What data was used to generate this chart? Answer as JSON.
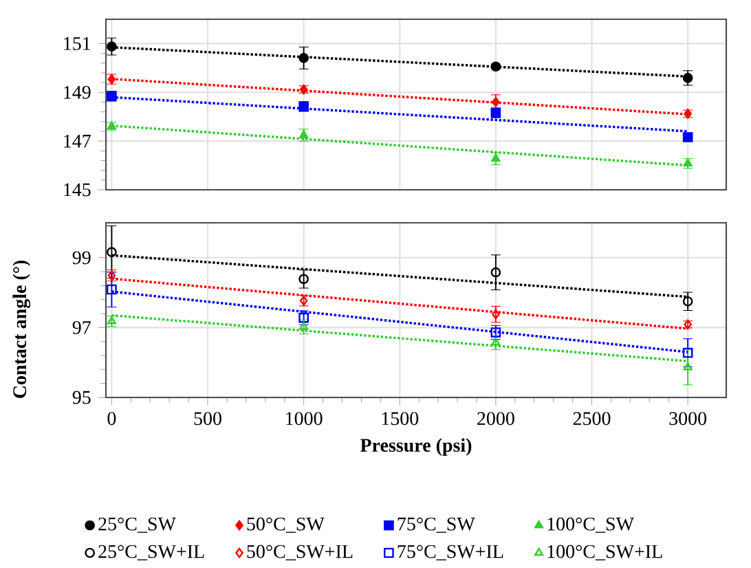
{
  "chart_data": [
    {
      "type": "scatter",
      "xlim": [
        -30,
        3200
      ],
      "xticks": [
        0,
        500,
        1000,
        1500,
        2000,
        2500,
        3000
      ],
      "ylim": [
        145,
        152
      ],
      "yticks": [
        145,
        147,
        149,
        151
      ],
      "grid": true,
      "tick_labels": "y",
      "legend": "bottom",
      "series": [
        {
          "name": "25°C_SW",
          "color": "#000000",
          "marker": "circle",
          "x": [
            0,
            1000,
            2000,
            3000
          ],
          "values": [
            150.88,
            150.41,
            150.06,
            149.59
          ],
          "errors": [
            0.35,
            0.45,
            0.1,
            0.3
          ]
        },
        {
          "name": "50°C_SW",
          "color": "#ff0000",
          "marker": "diamond",
          "x": [
            0,
            1000,
            2000,
            3000
          ],
          "values": [
            149.54,
            149.12,
            148.6,
            148.12
          ],
          "errors": [
            0.2,
            0.15,
            0.3,
            0.15
          ]
        },
        {
          "name": "75°C_SW",
          "color": "#0000ff",
          "marker": "square",
          "x": [
            0,
            1000,
            2000,
            3000
          ],
          "values": [
            148.84,
            148.42,
            148.16,
            147.16
          ],
          "errors": [
            0.2,
            0.2,
            0.2,
            0.15
          ]
        },
        {
          "name": "100°C_SW",
          "color": "#33cc33",
          "marker": "triangle",
          "x": [
            0,
            1000,
            2000,
            3000
          ],
          "values": [
            147.6,
            147.24,
            146.28,
            146.08
          ],
          "errors": [
            0.15,
            0.25,
            0.25,
            0.2
          ]
        },
        {
          "type": "line",
          "color": "#000000",
          "line_style": "dotted",
          "x": [
            0,
            3000
          ],
          "values": [
            150.85,
            149.65
          ]
        },
        {
          "type": "line",
          "color": "#ff0000",
          "line_style": "dotted",
          "x": [
            0,
            3000
          ],
          "values": [
            149.55,
            148.1
          ]
        },
        {
          "type": "line",
          "color": "#0000ff",
          "line_style": "dotted",
          "x": [
            0,
            3000
          ],
          "values": [
            148.8,
            147.4
          ]
        },
        {
          "type": "line",
          "color": "#33cc33",
          "line_style": "dotted",
          "x": [
            0,
            3000
          ],
          "values": [
            147.63,
            146.0
          ]
        }
      ]
    },
    {
      "type": "scatter",
      "xlabel": "Pressure (psi)",
      "ylabel": "Contact angle (°)",
      "xlim": [
        -30,
        3200
      ],
      "xticks": [
        0,
        500,
        1000,
        1500,
        2000,
        2500,
        3000
      ],
      "ylim": [
        95,
        100
      ],
      "yticks": [
        95,
        97,
        99
      ],
      "grid": true,
      "legend": "bottom",
      "series": [
        {
          "name": "25°C_SW+IL",
          "color": "#000000",
          "marker": "circle",
          "x": [
            0,
            1000,
            2000,
            3000
          ],
          "values": [
            99.16,
            98.39,
            98.58,
            97.75
          ],
          "errors": [
            0.75,
            0.26,
            0.5,
            0.26
          ]
        },
        {
          "name": "50°C_SW+IL",
          "color": "#ff0000",
          "marker": "diamond",
          "x": [
            0,
            1000,
            2000,
            3000
          ],
          "values": [
            98.49,
            97.77,
            97.38,
            97.09
          ],
          "errors": [
            0.16,
            0.15,
            0.23,
            0.1
          ]
        },
        {
          "name": "75°C_SW+IL",
          "color": "#0000ff",
          "marker": "square",
          "x": [
            0,
            1000,
            2000,
            3000
          ],
          "values": [
            98.09,
            97.28,
            96.86,
            96.28
          ],
          "errors": [
            0.5,
            0.2,
            0.2,
            0.4
          ]
        },
        {
          "name": "100°C_SW+IL",
          "color": "#33cc33",
          "marker": "triangle",
          "x": [
            0,
            1000,
            2000,
            3000
          ],
          "values": [
            97.18,
            97.02,
            96.57,
            95.86
          ],
          "errors": [
            0.15,
            0.2,
            0.2,
            0.5
          ]
        },
        {
          "type": "line",
          "color": "#000000",
          "line_style": "dotted",
          "x": [
            0,
            3000
          ],
          "values": [
            99.07,
            97.88
          ]
        },
        {
          "type": "line",
          "color": "#ff0000",
          "line_style": "dotted",
          "x": [
            0,
            3000
          ],
          "values": [
            98.4,
            96.97
          ]
        },
        {
          "type": "line",
          "color": "#0000ff",
          "line_style": "dotted",
          "x": [
            0,
            3000
          ],
          "values": [
            98.03,
            96.3
          ]
        },
        {
          "type": "line",
          "color": "#33cc33",
          "line_style": "dotted",
          "x": [
            0,
            3000
          ],
          "values": [
            97.35,
            96.04
          ]
        }
      ]
    }
  ]
}
